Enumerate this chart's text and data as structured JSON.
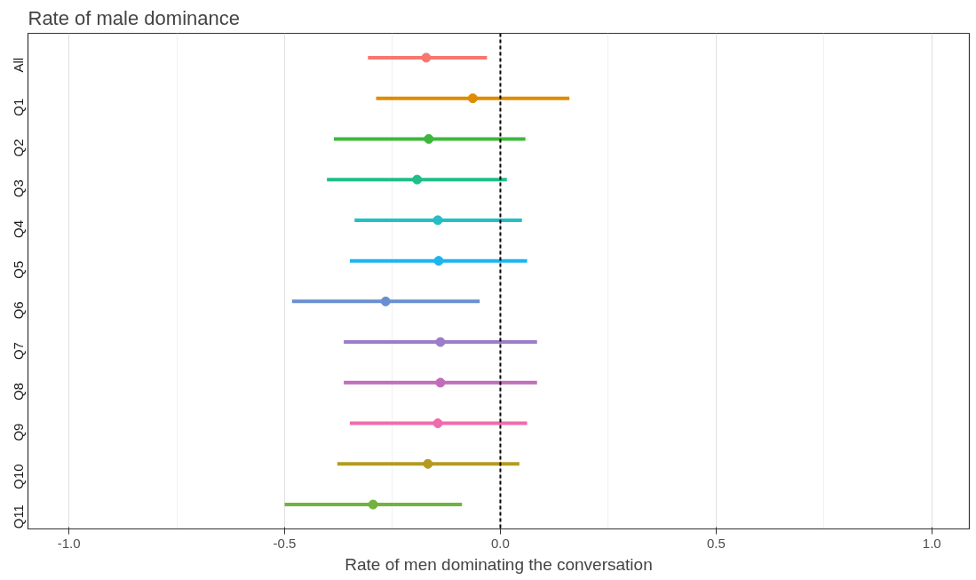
{
  "chart_data": {
    "type": "scatter",
    "title": "Rate of male dominance",
    "xlabel": "Rate of men dominating the conversation",
    "orientation": "horizontal",
    "marker": "circle",
    "grid": "x",
    "categories": [
      "All",
      "Q1",
      "Q2",
      "Q3",
      "Q4",
      "Q5",
      "Q6",
      "Q7",
      "Q8",
      "Q9",
      "Q10",
      "Q11"
    ],
    "values": [
      -0.172,
      -0.064,
      -0.166,
      -0.193,
      -0.145,
      -0.143,
      -0.266,
      -0.139,
      -0.139,
      -0.145,
      -0.168,
      -0.295
    ],
    "errors": [
      [
        -0.307,
        -0.031
      ],
      [
        -0.288,
        0.16
      ],
      [
        -0.386,
        0.058
      ],
      [
        -0.402,
        0.015
      ],
      [
        -0.338,
        0.05
      ],
      [
        -0.349,
        0.062
      ],
      [
        -0.483,
        -0.048
      ],
      [
        -0.363,
        0.085
      ],
      [
        -0.363,
        0.085
      ],
      [
        -0.349,
        0.062
      ],
      [
        -0.378,
        0.044
      ],
      [
        -0.5,
        -0.089
      ]
    ],
    "colors": [
      "#f8766d",
      "#de8c00",
      "#3db83d",
      "#1fbe8a",
      "#22bfc4",
      "#1cb5f0",
      "#6a8fd0",
      "#9b7dc8",
      "#c06cb8",
      "#f06bae",
      "#b59a20",
      "#72b23e"
    ],
    "xlim": [
      -1.095,
      1.087
    ],
    "xticks": [
      {
        "value": -1,
        "label": "-1.0"
      },
      {
        "value": -0.5,
        "label": "-0.5"
      },
      {
        "value": 0,
        "label": "0.0"
      },
      {
        "value": 0.5,
        "label": "0.5"
      },
      {
        "value": 1,
        "label": "1.0"
      }
    ],
    "ref_lines": [
      {
        "axis": "x",
        "value": 0,
        "color": "#000000",
        "line_style": "dashed"
      }
    ]
  }
}
